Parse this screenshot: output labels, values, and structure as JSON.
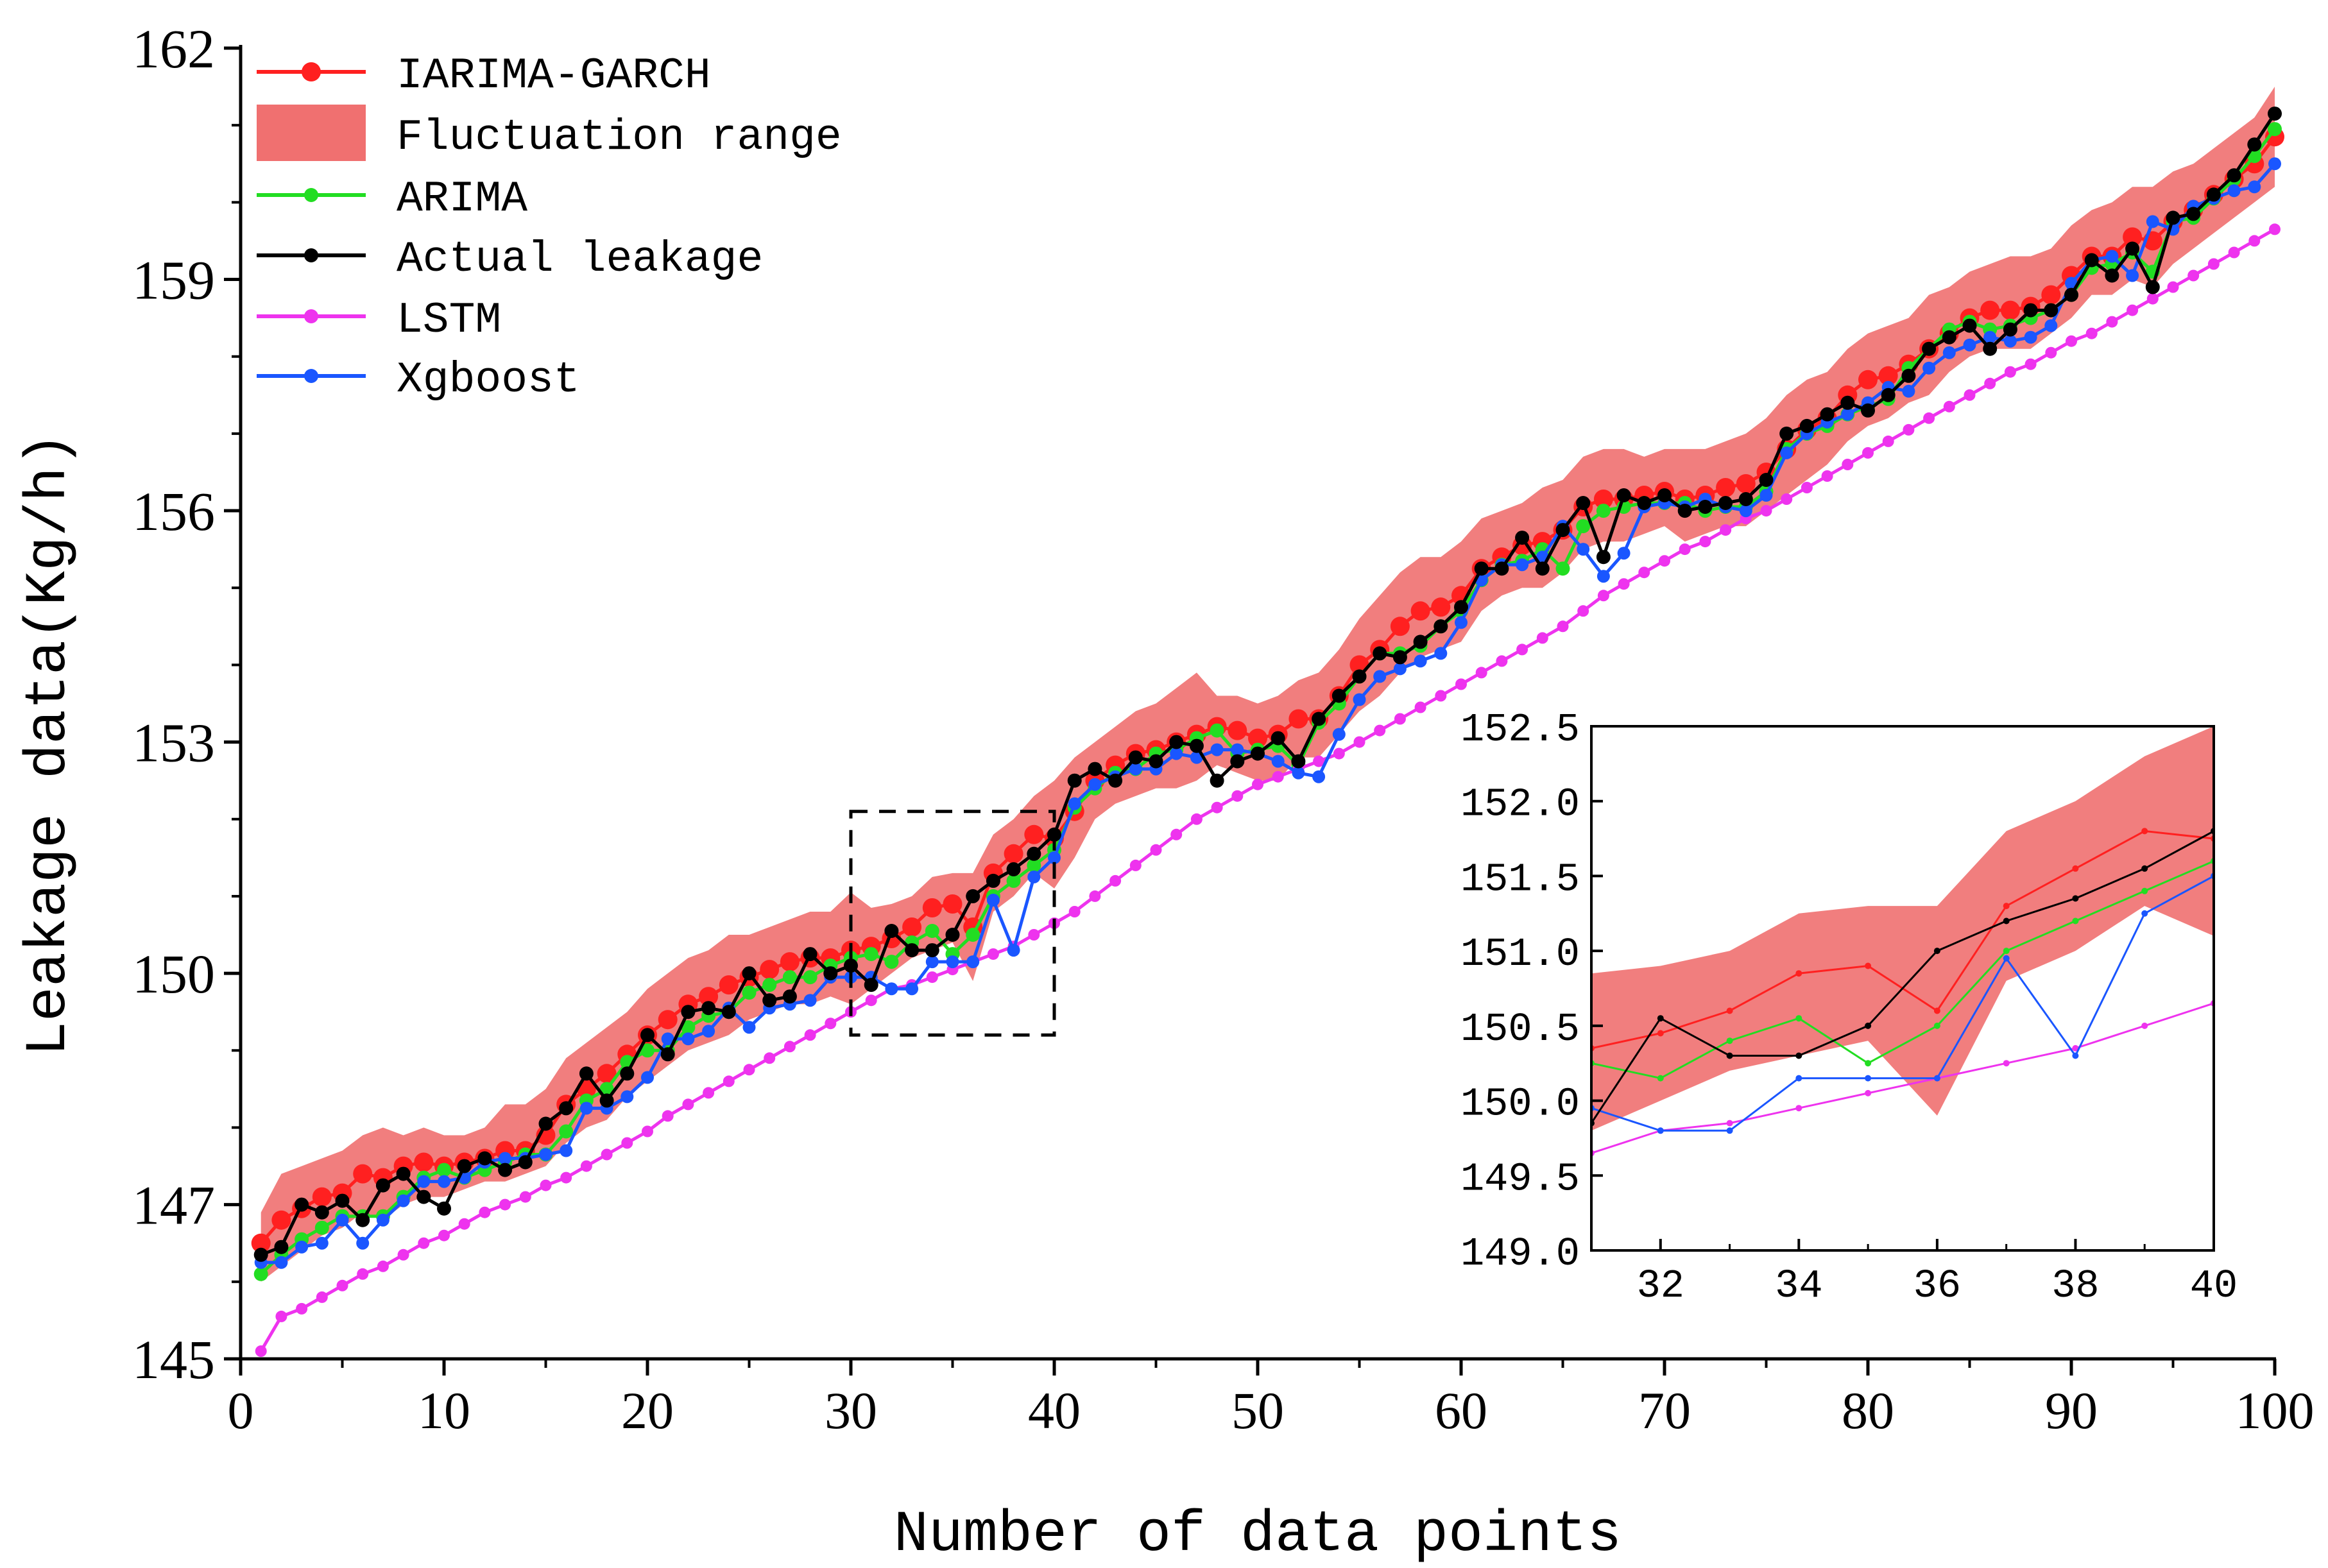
{
  "chart_data": {
    "type": "line",
    "xlabel": "Number of data points",
    "ylabel": "Leakage data(Kg/h)",
    "xlim": [
      0,
      100
    ],
    "ylim": [
      145,
      162
    ],
    "x_ticks": [
      "0",
      "10",
      "20",
      "30",
      "40",
      "50",
      "60",
      "70",
      "80",
      "90",
      "100"
    ],
    "y_ticks": [
      "145",
      "147",
      "150",
      "153",
      "156",
      "159",
      "162"
    ],
    "y_tick_values": [
      145,
      147,
      150,
      153,
      156,
      159,
      162
    ],
    "legend": [
      "IARIMA-GARCH",
      "Fluctuation range",
      "ARIMA",
      "Actual leakage",
      "LSTM",
      "Xgboost"
    ],
    "colors": {
      "IARIMA-GARCH": "#ff2020",
      "Fluctuation range": "#f07070",
      "ARIMA": "#22dd22",
      "Actual leakage": "#000000",
      "LSTM": "#ee33ee",
      "Xgboost": "#1a56ff"
    },
    "x": [
      1,
      2,
      3,
      4,
      5,
      6,
      7,
      8,
      9,
      10,
      11,
      12,
      13,
      14,
      15,
      16,
      17,
      18,
      19,
      20,
      21,
      22,
      23,
      24,
      25,
      26,
      27,
      28,
      29,
      30,
      31,
      32,
      33,
      34,
      35,
      36,
      37,
      38,
      39,
      40,
      41,
      42,
      43,
      44,
      45,
      46,
      47,
      48,
      49,
      50,
      51,
      52,
      53,
      54,
      55,
      56,
      57,
      58,
      59,
      60,
      61,
      62,
      63,
      64,
      65,
      66,
      67,
      68,
      69,
      70,
      71,
      72,
      73,
      74,
      75,
      76,
      77,
      78,
      79,
      80,
      81,
      82,
      83,
      84,
      85,
      86,
      87,
      88,
      89,
      90,
      91,
      92,
      93,
      94,
      95,
      96,
      97,
      98,
      99,
      100
    ],
    "series": [
      {
        "name": "Actual leakage",
        "values": [
          146.35,
          146.45,
          147.0,
          146.9,
          147.05,
          146.8,
          147.25,
          147.4,
          147.1,
          146.95,
          147.5,
          147.6,
          147.45,
          147.55,
          148.05,
          148.25,
          148.7,
          148.35,
          148.7,
          149.2,
          148.95,
          149.5,
          149.55,
          149.5,
          150.0,
          149.65,
          149.7,
          150.25,
          150.0,
          150.1,
          149.85,
          150.55,
          150.3,
          150.3,
          150.5,
          151.0,
          151.2,
          151.35,
          151.55,
          151.8,
          152.5,
          152.65,
          152.5,
          152.8,
          152.75,
          153.0,
          152.95,
          152.5,
          152.75,
          152.85,
          153.05,
          152.75,
          153.3,
          153.6,
          153.85,
          154.15,
          154.1,
          154.3,
          154.5,
          154.75,
          155.25,
          155.25,
          155.65,
          155.25,
          155.75,
          156.1,
          155.4,
          156.2,
          156.1,
          156.2,
          156.0,
          156.05,
          156.1,
          156.15,
          156.4,
          157.0,
          157.1,
          157.25,
          157.4,
          157.3,
          157.5,
          157.75,
          158.1,
          158.25,
          158.4,
          158.1,
          158.35,
          158.6,
          158.6,
          158.8,
          159.25,
          159.05,
          159.4,
          158.9,
          159.8,
          159.85,
          160.1,
          160.35,
          160.75,
          161.15
        ]
      },
      {
        "name": "IARIMA-GARCH",
        "values": [
          146.5,
          146.8,
          146.95,
          147.1,
          147.15,
          147.4,
          147.35,
          147.5,
          147.55,
          147.5,
          147.55,
          147.6,
          147.7,
          147.7,
          147.9,
          148.3,
          148.5,
          148.7,
          148.95,
          149.2,
          149.4,
          149.6,
          149.7,
          149.85,
          149.95,
          150.05,
          150.15,
          150.2,
          150.2,
          150.3,
          150.35,
          150.45,
          150.6,
          150.85,
          150.9,
          150.6,
          151.3,
          151.55,
          151.8,
          151.75,
          152.1,
          152.5,
          152.7,
          152.85,
          152.9,
          153.0,
          153.1,
          153.2,
          153.15,
          153.05,
          153.1,
          153.3,
          153.3,
          153.6,
          154.0,
          154.2,
          154.5,
          154.7,
          154.75,
          154.9,
          155.25,
          155.4,
          155.55,
          155.6,
          155.75,
          156.05,
          156.15,
          156.15,
          156.2,
          156.25,
          156.15,
          156.2,
          156.3,
          156.35,
          156.5,
          156.8,
          157.05,
          157.2,
          157.5,
          157.7,
          157.75,
          157.9,
          158.1,
          158.3,
          158.5,
          158.6,
          158.6,
          158.65,
          158.8,
          159.05,
          159.3,
          159.3,
          159.55,
          159.5,
          159.75,
          159.9,
          160.1,
          160.3,
          160.5,
          160.85
        ]
      },
      {
        "name": "ARIMA",
        "values": [
          146.1,
          146.35,
          146.55,
          146.7,
          146.85,
          146.85,
          146.85,
          147.1,
          147.35,
          147.45,
          147.35,
          147.45,
          147.55,
          147.65,
          147.65,
          147.95,
          148.35,
          148.5,
          148.85,
          149.0,
          149.0,
          149.3,
          149.45,
          149.5,
          149.75,
          149.85,
          149.95,
          149.95,
          150.1,
          150.2,
          150.25,
          150.15,
          150.4,
          150.55,
          150.25,
          150.5,
          151.0,
          151.2,
          151.4,
          151.6,
          152.15,
          152.4,
          152.6,
          152.65,
          152.85,
          152.9,
          153.05,
          153.15,
          152.85,
          152.9,
          152.95,
          152.7,
          153.25,
          153.5,
          153.85,
          154.15,
          154.15,
          154.25,
          154.5,
          154.7,
          155.1,
          155.3,
          155.35,
          155.5,
          155.25,
          155.8,
          156.0,
          156.05,
          156.1,
          156.1,
          156.1,
          156.0,
          156.05,
          156.05,
          156.25,
          156.8,
          157.0,
          157.1,
          157.25,
          157.35,
          157.45,
          157.85,
          158.1,
          158.35,
          158.45,
          158.35,
          158.4,
          158.5,
          158.6,
          158.8,
          159.15,
          159.2,
          159.35,
          159.1,
          159.75,
          159.8,
          160.05,
          160.3,
          160.6,
          160.95
        ]
      },
      {
        "name": "LSTM",
        "values": [
          145.1,
          145.55,
          145.65,
          145.8,
          145.95,
          146.1,
          146.2,
          146.35,
          146.5,
          146.6,
          146.75,
          146.9,
          147.0,
          147.1,
          147.25,
          147.35,
          147.5,
          147.65,
          147.8,
          147.95,
          148.15,
          148.3,
          148.45,
          148.6,
          148.75,
          148.9,
          149.05,
          149.2,
          149.35,
          149.5,
          149.65,
          149.8,
          149.85,
          149.95,
          150.05,
          150.15,
          150.25,
          150.35,
          150.5,
          150.65,
          150.8,
          151.0,
          151.2,
          151.4,
          151.6,
          151.8,
          152.0,
          152.15,
          152.3,
          152.45,
          152.55,
          152.65,
          152.75,
          152.85,
          153.0,
          153.15,
          153.3,
          153.45,
          153.6,
          153.75,
          153.9,
          154.05,
          154.2,
          154.35,
          154.5,
          154.7,
          154.9,
          155.05,
          155.2,
          155.35,
          155.5,
          155.6,
          155.75,
          155.9,
          156.0,
          156.15,
          156.3,
          156.45,
          156.6,
          156.75,
          156.9,
          157.05,
          157.2,
          157.35,
          157.5,
          157.65,
          157.8,
          157.9,
          158.05,
          158.2,
          158.3,
          158.45,
          158.6,
          158.75,
          158.9,
          159.05,
          159.2,
          159.35,
          159.5,
          159.65
        ]
      },
      {
        "name": "Xgboost",
        "values": [
          146.25,
          146.25,
          146.45,
          146.5,
          146.8,
          146.5,
          146.8,
          147.05,
          147.3,
          147.3,
          147.35,
          147.55,
          147.6,
          147.6,
          147.65,
          147.7,
          148.25,
          148.25,
          148.4,
          148.65,
          149.15,
          149.15,
          149.25,
          149.55,
          149.3,
          149.55,
          149.6,
          149.65,
          149.95,
          149.95,
          149.95,
          149.8,
          149.8,
          150.15,
          150.15,
          150.15,
          150.95,
          150.3,
          151.25,
          151.5,
          152.2,
          152.45,
          152.55,
          152.65,
          152.65,
          152.85,
          152.8,
          152.9,
          152.9,
          152.85,
          152.75,
          152.6,
          152.55,
          153.1,
          153.55,
          153.85,
          153.95,
          154.05,
          154.15,
          154.55,
          155.1,
          155.3,
          155.3,
          155.4,
          155.8,
          155.5,
          155.15,
          155.45,
          156.05,
          156.1,
          156.05,
          156.15,
          156.05,
          156.0,
          156.2,
          156.75,
          157.0,
          157.15,
          157.25,
          157.4,
          157.6,
          157.55,
          157.85,
          158.05,
          158.15,
          158.25,
          158.2,
          158.25,
          158.4,
          158.95,
          159.25,
          159.3,
          159.05,
          159.75,
          159.65,
          159.95,
          160.05,
          160.15,
          160.2,
          160.5
        ]
      }
    ],
    "fluctuation_range": {
      "upper": [
        146.9,
        147.4,
        147.5,
        147.6,
        147.7,
        147.9,
        148.0,
        147.9,
        148.0,
        147.9,
        147.9,
        148.0,
        148.3,
        148.3,
        148.5,
        148.9,
        149.1,
        149.3,
        149.5,
        149.8,
        150.0,
        150.2,
        150.3,
        150.5,
        150.5,
        150.6,
        150.7,
        150.8,
        150.8,
        151.05,
        150.85,
        150.9,
        151.0,
        151.25,
        151.3,
        151.3,
        151.8,
        152.0,
        152.3,
        152.5,
        152.8,
        153.0,
        153.2,
        153.4,
        153.5,
        153.7,
        153.9,
        153.6,
        153.6,
        153.5,
        153.6,
        153.8,
        153.9,
        154.2,
        154.6,
        154.9,
        155.2,
        155.4,
        155.4,
        155.6,
        155.9,
        156.0,
        156.1,
        156.3,
        156.4,
        156.7,
        156.8,
        156.8,
        156.7,
        156.8,
        156.8,
        156.8,
        156.9,
        157.0,
        157.2,
        157.5,
        157.7,
        157.8,
        158.1,
        158.3,
        158.4,
        158.5,
        158.8,
        158.9,
        159.1,
        159.2,
        159.3,
        159.3,
        159.4,
        159.7,
        159.9,
        160.0,
        160.2,
        160.2,
        160.4,
        160.5,
        160.7,
        160.9,
        161.1,
        161.5
      ],
      "lower": [
        146.0,
        146.2,
        146.4,
        146.6,
        146.7,
        146.9,
        146.8,
        147.0,
        147.1,
        147.1,
        147.2,
        147.3,
        147.3,
        147.4,
        147.5,
        147.8,
        148.0,
        148.1,
        148.4,
        148.6,
        148.8,
        149.0,
        149.1,
        149.2,
        149.4,
        149.5,
        149.6,
        149.6,
        149.7,
        149.6,
        149.8,
        150.0,
        150.2,
        150.3,
        150.4,
        149.9,
        150.8,
        151.0,
        151.3,
        151.1,
        151.5,
        152.0,
        152.2,
        152.3,
        152.4,
        152.4,
        152.5,
        152.7,
        152.6,
        152.5,
        152.5,
        152.8,
        152.8,
        153.1,
        153.4,
        153.6,
        153.9,
        154.1,
        154.2,
        154.3,
        154.7,
        154.9,
        155.0,
        155.0,
        155.2,
        155.5,
        155.6,
        155.6,
        155.7,
        155.8,
        155.6,
        155.7,
        155.8,
        155.8,
        156.0,
        156.2,
        156.4,
        156.6,
        156.9,
        157.1,
        157.2,
        157.4,
        157.5,
        157.8,
        158.0,
        158.1,
        158.1,
        158.1,
        158.3,
        158.5,
        158.8,
        158.8,
        159.0,
        158.9,
        159.2,
        159.4,
        159.6,
        159.8,
        160.0,
        160.2
      ]
    },
    "inset": {
      "xlim": [
        31,
        40
      ],
      "ylim": [
        149.0,
        152.5
      ],
      "x_ticks": [
        "32",
        "34",
        "36",
        "38",
        "40"
      ],
      "y_ticks": [
        "149.0",
        "149.5",
        "150.0",
        "150.5",
        "151.0",
        "151.5",
        "152.0",
        "152.5"
      ],
      "zoom_box_x": [
        30,
        40
      ],
      "zoom_box_y": [
        149.2,
        152.1
      ]
    }
  }
}
